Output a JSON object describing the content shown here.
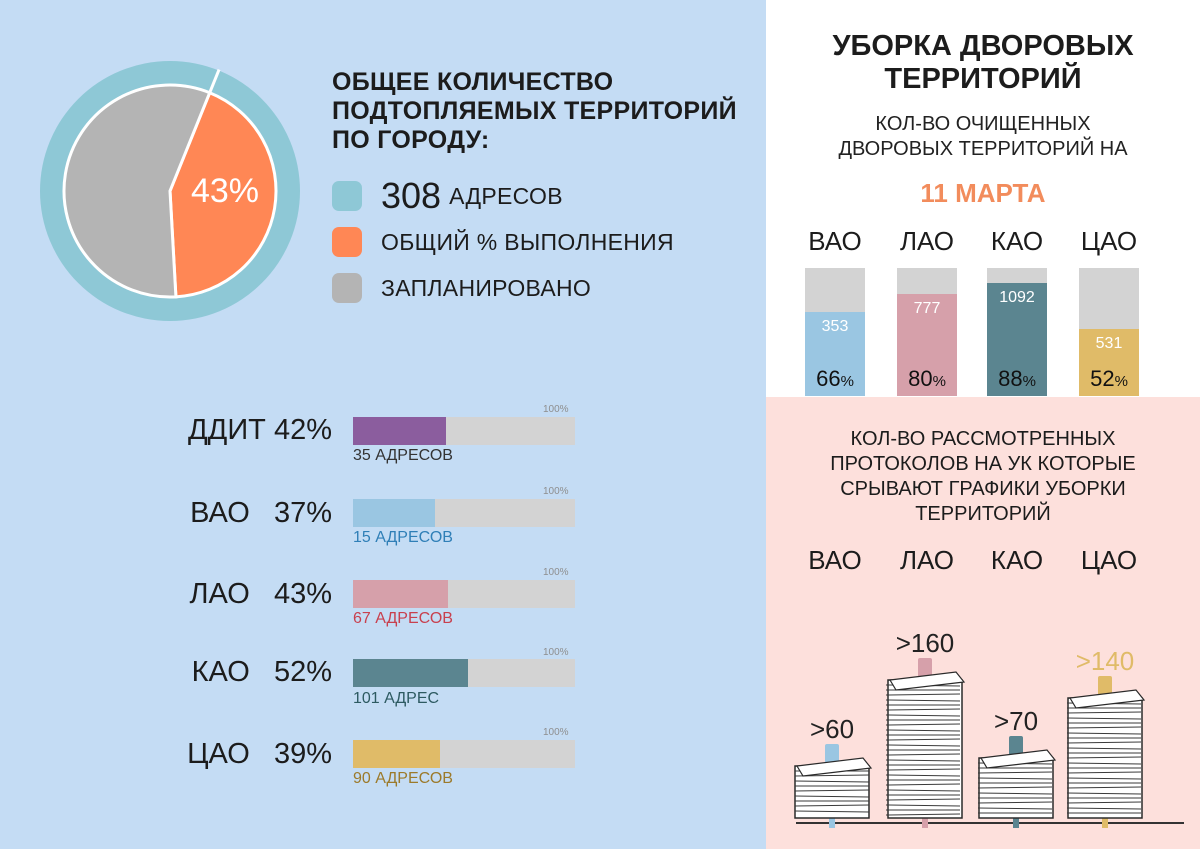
{
  "left": {
    "title_lines": [
      "ОБЩЕЕ КОЛИЧЕСТВО",
      "ПОДТОПЛЯЕМЫХ ТЕРРИТОРИЙ",
      "ПО ГОРОДУ:"
    ],
    "donut_label": "43%",
    "legend": [
      {
        "number": "308",
        "label": "АДРЕСОВ",
        "color": "#8ec8d6"
      },
      {
        "number": "",
        "label": "ОБЩИЙ % ВЫПОЛНЕНИЯ",
        "color": "#ff8755"
      },
      {
        "number": "",
        "label": "ЗАПЛАНИРОВАНО",
        "color": "#b4b4b4"
      }
    ],
    "progress": [
      {
        "name": "ДДИТ",
        "pct_label": "42%",
        "value": 42,
        "max_label": "100%",
        "addresses": "35 АДРЕСОВ",
        "color": "#8b5d9e",
        "text_color": "#333333"
      },
      {
        "name": "ВАО",
        "pct_label": "37%",
        "value": 37,
        "max_label": "100%",
        "addresses": "15 АДРЕСОВ",
        "color": "#9ac6e2",
        "text_color": "#2f7fb7"
      },
      {
        "name": "ЛАО",
        "pct_label": "43%",
        "value": 43,
        "max_label": "100%",
        "addresses": "67 АДРЕСОВ",
        "color": "#d6a0aa",
        "text_color": "#c8404e"
      },
      {
        "name": "КАО",
        "pct_label": "52%",
        "value": 52,
        "max_label": "100%",
        "addresses": "101 АДРЕС",
        "color": "#5b8590",
        "text_color": "#2d5a61"
      },
      {
        "name": "ЦАО",
        "pct_label": "39%",
        "value": 39,
        "max_label": "100%",
        "addresses": "90 АДРЕСОВ",
        "color": "#e0bb68",
        "text_color": "#9c7a2a"
      }
    ]
  },
  "right_top": {
    "title_lines": [
      "УБОРКА ДВОРОВЫХ",
      "ТЕРРИТОРИЙ"
    ],
    "subtitle_lines": [
      "КОЛ-ВО ОЧИЩЕННЫХ",
      "ДВОРОВЫХ ТЕРРИТОРИЙ НА"
    ],
    "date": "11 МАРТА",
    "bars": [
      {
        "name": "ВАО",
        "count": "353",
        "pct": "66",
        "pct_sign": "%",
        "value": 66,
        "color": "#9ac6e2"
      },
      {
        "name": "ЛАО",
        "count": "777",
        "pct": "80",
        "pct_sign": "%",
        "value": 80,
        "color": "#d6a0aa"
      },
      {
        "name": "КАО",
        "count": "1092",
        "pct": "88",
        "pct_sign": "%",
        "value": 88,
        "color": "#5b8590"
      },
      {
        "name": "ЦАО",
        "count": "531",
        "pct": "52",
        "pct_sign": "%",
        "value": 52,
        "color": "#e0bb68"
      }
    ]
  },
  "right_bottom": {
    "title_lines": [
      "КОЛ-ВО РАССМОТРЕННЫХ",
      "ПРОТОКОЛОВ НА УК КОТОРЫЕ",
      "СРЫВАЮТ ГРАФИКИ УБОРКИ",
      "ТЕРРИТОРИЙ"
    ],
    "stacks": [
      {
        "name": "ВАО",
        "label": ">60",
        "value": 60,
        "color": "#9ac6e2"
      },
      {
        "name": "ЛАО",
        "label": ">160",
        "value": 160,
        "color": "#d6a0aa"
      },
      {
        "name": "КАО",
        "label": ">70",
        "value": 70,
        "color": "#5b8590"
      },
      {
        "name": "ЦАО",
        "label": ">140",
        "value": 140,
        "color": "#e0bb68"
      }
    ]
  },
  "chart_data": [
    {
      "type": "pie",
      "categories": [
        "ОБЩИЙ % ВЫПОЛНЕНИЯ",
        "ЗАПЛАНИРОВАНО"
      ],
      "values": [
        43,
        57
      ]
    },
    {
      "type": "bar",
      "categories": [
        "ДДИТ",
        "ВАО",
        "ЛАО",
        "КАО",
        "ЦАО"
      ],
      "values": [
        42,
        37,
        43,
        52,
        39
      ],
      "ylim": [
        0,
        100
      ]
    },
    {
      "type": "bar",
      "title": "УБОРКА ДВОРОВЫХ ТЕРРИТОРИЙ",
      "categories": [
        "ВАО",
        "ЛАО",
        "КАО",
        "ЦАО"
      ],
      "values": [
        66,
        80,
        88,
        52
      ],
      "counts": [
        353,
        777,
        1092,
        531
      ],
      "ylim": [
        0,
        100
      ]
    },
    {
      "type": "bar",
      "categories": [
        "ВАО",
        "ЛАО",
        "КАО",
        "ЦАО"
      ],
      "values": [
        60,
        160,
        70,
        140
      ]
    }
  ]
}
